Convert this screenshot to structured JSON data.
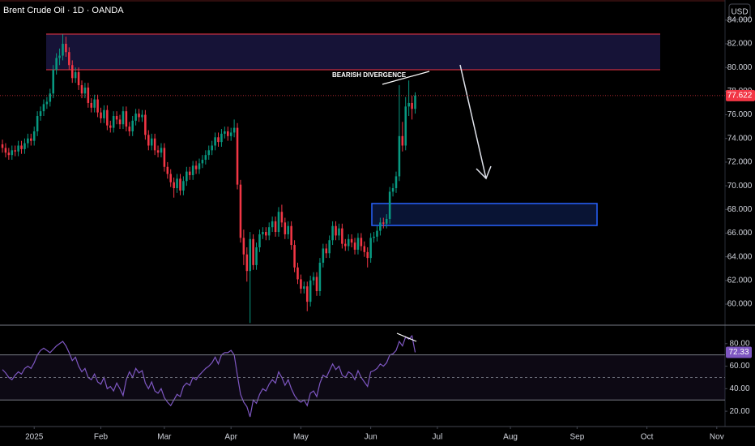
{
  "chart_data": [
    {
      "type": "candlestick",
      "title": "Brent Crude Oil · 1D · OANDA",
      "currency": "USD",
      "annotation": "BEARISH DIVERGENCE",
      "up_color": "#089981",
      "down_color": "#f23645",
      "ylim": [
        58.29,
        85.7
      ],
      "yticks": [
        {
          "value": 60,
          "label": "60.000"
        },
        {
          "value": 62,
          "label": "62.000"
        },
        {
          "value": 64,
          "label": "64.000"
        },
        {
          "value": 66,
          "label": "66.000"
        },
        {
          "value": 68,
          "label": "68.000"
        },
        {
          "value": 70,
          "label": "70.000"
        },
        {
          "value": 72,
          "label": "72.000"
        },
        {
          "value": 74,
          "label": "74.000"
        },
        {
          "value": 76,
          "label": "76.000"
        },
        {
          "value": 78,
          "label": "78.000"
        },
        {
          "value": 80,
          "label": "80.000"
        },
        {
          "value": 82,
          "label": "82.000"
        },
        {
          "value": 84,
          "label": "84.000"
        }
      ],
      "xlim": [
        -0.77,
        227.6
      ],
      "xticks": [
        {
          "value": 10,
          "label": "2025"
        },
        {
          "value": 31,
          "label": "Feb"
        },
        {
          "value": 51,
          "label": "Mar"
        },
        {
          "value": 72,
          "label": "Apr"
        },
        {
          "value": 94,
          "label": "May"
        },
        {
          "value": 116,
          "label": "Jun"
        },
        {
          "value": 137,
          "label": "Jul"
        },
        {
          "value": 160,
          "label": "Aug"
        },
        {
          "value": 181,
          "label": "Sep"
        },
        {
          "value": 203,
          "label": "Oct"
        },
        {
          "value": 225,
          "label": "Nov"
        }
      ],
      "candles": [
        [
          73.5,
          73.9,
          72.8,
          73.2
        ],
        [
          73.2,
          73.6,
          72.4,
          72.8
        ],
        [
          72.8,
          73.2,
          72.2,
          72.6
        ],
        [
          72.6,
          73.4,
          72.2,
          73.0
        ],
        [
          73.0,
          73.4,
          72.5,
          72.9
        ],
        [
          72.9,
          73.8,
          72.5,
          73.4
        ],
        [
          73.4,
          73.8,
          72.7,
          73.1
        ],
        [
          73.1,
          74.0,
          72.7,
          73.6
        ],
        [
          73.6,
          74.4,
          73.2,
          74.0
        ],
        [
          74.0,
          74.4,
          73.4,
          73.8
        ],
        [
          73.8,
          75.0,
          73.4,
          74.6
        ],
        [
          74.6,
          76.3,
          74.2,
          75.9
        ],
        [
          75.9,
          76.7,
          75.5,
          76.3
        ],
        [
          76.3,
          77.3,
          75.9,
          76.9
        ],
        [
          76.9,
          77.5,
          76.5,
          77.1
        ],
        [
          77.1,
          78.2,
          76.7,
          77.8
        ],
        [
          77.8,
          80.2,
          77.4,
          79.8
        ],
        [
          79.8,
          81.2,
          79.4,
          80.8
        ],
        [
          80.8,
          81.6,
          80.2,
          81.0
        ],
        [
          81.0,
          82.8,
          80.6,
          82.0
        ],
        [
          82.0,
          82.6,
          80.9,
          81.3
        ],
        [
          81.3,
          81.7,
          79.8,
          80.2
        ],
        [
          80.2,
          80.6,
          78.7,
          79.1
        ],
        [
          79.1,
          80.0,
          78.7,
          79.6
        ],
        [
          79.6,
          80.0,
          78.1,
          78.5
        ],
        [
          78.5,
          78.9,
          77.4,
          77.8
        ],
        [
          77.8,
          78.7,
          77.4,
          78.3
        ],
        [
          78.3,
          78.7,
          76.6,
          77.0
        ],
        [
          77.0,
          77.4,
          76.2,
          76.6
        ],
        [
          76.6,
          77.7,
          76.2,
          77.3
        ],
        [
          77.3,
          77.7,
          75.8,
          76.2
        ],
        [
          76.2,
          76.6,
          75.3,
          75.7
        ],
        [
          75.7,
          76.8,
          75.3,
          76.4
        ],
        [
          76.4,
          76.8,
          74.7,
          75.1
        ],
        [
          75.1,
          75.5,
          74.5,
          74.9
        ],
        [
          74.9,
          76.3,
          74.5,
          75.9
        ],
        [
          75.9,
          76.3,
          75.2,
          75.6
        ],
        [
          75.6,
          76.0,
          74.8,
          75.2
        ],
        [
          75.2,
          76.7,
          74.8,
          76.3
        ],
        [
          76.3,
          76.7,
          74.6,
          75.0
        ],
        [
          75.0,
          75.4,
          74.2,
          74.6
        ],
        [
          74.6,
          75.9,
          74.2,
          75.5
        ],
        [
          75.5,
          76.5,
          75.1,
          76.1
        ],
        [
          76.1,
          76.5,
          75.4,
          75.8
        ],
        [
          75.8,
          76.4,
          75.4,
          76.0
        ],
        [
          76.0,
          76.4,
          73.9,
          74.3
        ],
        [
          74.3,
          74.7,
          73.0,
          73.4
        ],
        [
          73.4,
          74.4,
          73.0,
          74.0
        ],
        [
          74.0,
          74.4,
          72.6,
          73.0
        ],
        [
          73.0,
          73.4,
          72.4,
          72.8
        ],
        [
          72.8,
          73.6,
          72.4,
          73.2
        ],
        [
          73.2,
          73.6,
          71.2,
          71.6
        ],
        [
          71.6,
          72.0,
          70.6,
          71.0
        ],
        [
          71.0,
          71.4,
          69.9,
          70.3
        ],
        [
          70.3,
          70.7,
          69.0,
          69.8
        ],
        [
          69.8,
          71.0,
          69.4,
          70.6
        ],
        [
          70.6,
          71.0,
          69.2,
          69.6
        ],
        [
          69.6,
          70.8,
          69.2,
          70.4
        ],
        [
          70.4,
          71.6,
          70.0,
          71.2
        ],
        [
          71.2,
          71.6,
          70.5,
          70.9
        ],
        [
          70.9,
          72.1,
          70.5,
          71.7
        ],
        [
          71.7,
          72.1,
          71.0,
          71.4
        ],
        [
          71.4,
          72.3,
          71.0,
          71.9
        ],
        [
          71.9,
          72.6,
          71.5,
          72.2
        ],
        [
          72.2,
          73.0,
          71.8,
          72.6
        ],
        [
          72.6,
          73.4,
          72.2,
          73.0
        ],
        [
          73.0,
          73.8,
          72.6,
          73.4
        ],
        [
          73.4,
          74.5,
          73.0,
          74.1
        ],
        [
          74.1,
          74.5,
          73.3,
          73.7
        ],
        [
          73.7,
          74.8,
          73.3,
          74.4
        ],
        [
          74.4,
          75.0,
          74.0,
          74.6
        ],
        [
          74.6,
          75.0,
          73.8,
          74.2
        ],
        [
          74.2,
          74.9,
          73.8,
          74.5
        ],
        [
          74.5,
          75.6,
          74.1,
          74.9
        ],
        [
          74.9,
          75.3,
          69.7,
          70.1
        ],
        [
          70.1,
          70.5,
          65.2,
          65.6
        ],
        [
          65.6,
          66.3,
          63.3,
          64.2
        ],
        [
          64.2,
          64.8,
          61.9,
          62.8
        ],
        [
          62.8,
          66.1,
          58.4,
          65.5
        ],
        [
          65.5,
          65.9,
          62.9,
          63.3
        ],
        [
          63.3,
          65.2,
          62.9,
          64.8
        ],
        [
          64.8,
          66.3,
          64.4,
          65.9
        ],
        [
          65.9,
          66.5,
          65.5,
          66.1
        ],
        [
          66.1,
          66.5,
          65.4,
          65.8
        ],
        [
          65.8,
          66.9,
          65.4,
          66.5
        ],
        [
          66.5,
          67.4,
          66.1,
          67.0
        ],
        [
          67.0,
          67.4,
          65.7,
          66.1
        ],
        [
          66.1,
          68.2,
          65.7,
          67.8
        ],
        [
          67.8,
          68.4,
          66.5,
          66.9
        ],
        [
          66.9,
          67.3,
          65.5,
          65.9
        ],
        [
          65.9,
          67.0,
          65.5,
          66.6
        ],
        [
          66.6,
          67.0,
          64.6,
          65.0
        ],
        [
          65.0,
          65.4,
          62.7,
          63.1
        ],
        [
          63.1,
          63.5,
          61.7,
          62.1
        ],
        [
          62.1,
          62.5,
          60.9,
          61.3
        ],
        [
          61.3,
          61.9,
          60.9,
          61.5
        ],
        [
          61.5,
          61.9,
          59.4,
          60.2
        ],
        [
          60.2,
          62.4,
          59.8,
          62.0
        ],
        [
          62.0,
          62.7,
          61.6,
          62.3
        ],
        [
          62.3,
          62.7,
          60.7,
          61.1
        ],
        [
          61.1,
          63.9,
          60.7,
          63.5
        ],
        [
          63.5,
          65.1,
          63.1,
          64.7
        ],
        [
          64.7,
          65.1,
          63.9,
          64.3
        ],
        [
          64.3,
          65.8,
          63.9,
          65.4
        ],
        [
          65.4,
          67.0,
          65.0,
          66.6
        ],
        [
          66.6,
          67.0,
          65.4,
          65.8
        ],
        [
          65.8,
          66.8,
          65.4,
          66.4
        ],
        [
          66.4,
          66.8,
          64.7,
          65.1
        ],
        [
          65.1,
          65.5,
          64.5,
          64.9
        ],
        [
          64.9,
          65.9,
          64.5,
          65.5
        ],
        [
          65.5,
          65.9,
          64.8,
          65.2
        ],
        [
          65.2,
          65.6,
          64.2,
          64.6
        ],
        [
          64.6,
          66.0,
          64.2,
          65.6
        ],
        [
          65.6,
          66.0,
          64.5,
          64.9
        ],
        [
          64.9,
          65.3,
          64.0,
          64.4
        ],
        [
          64.4,
          64.8,
          63.1,
          63.9
        ],
        [
          63.9,
          66.0,
          63.5,
          65.6
        ],
        [
          65.6,
          66.1,
          65.2,
          65.7
        ],
        [
          65.7,
          66.6,
          65.3,
          66.2
        ],
        [
          66.2,
          67.3,
          65.8,
          66.9
        ],
        [
          66.9,
          67.3,
          66.4,
          66.8
        ],
        [
          66.8,
          67.6,
          66.4,
          67.2
        ],
        [
          67.2,
          69.9,
          66.8,
          69.5
        ],
        [
          69.5,
          70.2,
          69.1,
          69.8
        ],
        [
          69.8,
          71.2,
          69.4,
          70.8
        ],
        [
          70.8,
          78.5,
          70.4,
          74.2
        ],
        [
          74.2,
          75.4,
          72.9,
          73.4
        ],
        [
          73.4,
          77.5,
          73.0,
          76.7
        ],
        [
          76.7,
          78.9,
          75.9,
          77.0
        ],
        [
          77.0,
          77.6,
          75.6,
          76.5
        ],
        [
          76.5,
          77.9,
          76.1,
          77.622
        ]
      ]
    },
    {
      "type": "line",
      "color": "#7e57c2",
      "ylim": [
        6.4,
        95.7
      ],
      "xlim": [
        -0.77,
        227.6
      ],
      "yticks": [
        {
          "value": 20,
          "label": "20.00"
        },
        {
          "value": 40,
          "label": "40.00"
        },
        {
          "value": 60,
          "label": "60.00"
        },
        {
          "value": 80,
          "label": "80.00"
        }
      ],
      "levels": [
        70,
        50,
        30
      ],
      "values": [
        57,
        54,
        50,
        48,
        52,
        55,
        53,
        58,
        60,
        58,
        63,
        70,
        74,
        76,
        74,
        72,
        75,
        78,
        80,
        82,
        78,
        72,
        65,
        68,
        60,
        55,
        58,
        50,
        48,
        53,
        46,
        44,
        50,
        40,
        42,
        38,
        45,
        40,
        34,
        48,
        55,
        50,
        58,
        54,
        56,
        45,
        40,
        46,
        38,
        36,
        40,
        32,
        28,
        25,
        30,
        35,
        33,
        42,
        45,
        43,
        50,
        48,
        52,
        55,
        58,
        60,
        63,
        68,
        62,
        70,
        72,
        72,
        74,
        70,
        52,
        35,
        28,
        24,
        15,
        30,
        27,
        35,
        40,
        38,
        44,
        48,
        45,
        55,
        50,
        43,
        48,
        40,
        34,
        30,
        28,
        30,
        25,
        36,
        38,
        33,
        45,
        52,
        50,
        56,
        62,
        57,
        60,
        52,
        50,
        55,
        53,
        48,
        56,
        50,
        46,
        42,
        55,
        56,
        58,
        62,
        60,
        63,
        70,
        71,
        74,
        82,
        78,
        86,
        84,
        87,
        72.33
      ]
    }
  ]
}
